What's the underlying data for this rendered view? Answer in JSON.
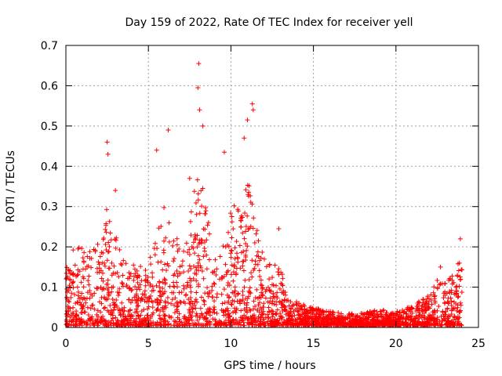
{
  "chart_data": {
    "type": "scatter",
    "title": "Day 159 of 2022, Rate Of TEC Index for receiver yell",
    "xlabel": "GPS time / hours",
    "ylabel": "ROTI / TECUs",
    "xlim": [
      0,
      25
    ],
    "ylim": [
      0,
      0.7
    ],
    "xticks": [
      0,
      5,
      10,
      15,
      20,
      25
    ],
    "xtick_labels": [
      "0",
      "5",
      "10",
      "15",
      "20",
      "25"
    ],
    "yticks": [
      0,
      0.1,
      0.2,
      0.3,
      0.4,
      0.5,
      0.6,
      0.7
    ],
    "ytick_labels": [
      "0",
      "0.1",
      "0.2",
      "0.3",
      "0.4",
      "0.5",
      "0.6",
      "0.7"
    ],
    "grid": true,
    "legend": "none",
    "marker": "+",
    "series": [
      {
        "name": "ROTI",
        "color": "#ff0000",
        "notable_points": [
          {
            "x": 2.5,
            "y": 0.46
          },
          {
            "x": 2.55,
            "y": 0.43
          },
          {
            "x": 3.0,
            "y": 0.34
          },
          {
            "x": 5.5,
            "y": 0.44
          },
          {
            "x": 6.2,
            "y": 0.49
          },
          {
            "x": 7.5,
            "y": 0.37
          },
          {
            "x": 8.05,
            "y": 0.655
          },
          {
            "x": 8.0,
            "y": 0.595
          },
          {
            "x": 8.1,
            "y": 0.54
          },
          {
            "x": 8.3,
            "y": 0.5
          },
          {
            "x": 9.6,
            "y": 0.435
          },
          {
            "x": 10.8,
            "y": 0.47
          },
          {
            "x": 11.0,
            "y": 0.515
          },
          {
            "x": 11.3,
            "y": 0.555
          },
          {
            "x": 11.35,
            "y": 0.54
          },
          {
            "x": 12.9,
            "y": 0.245
          },
          {
            "x": 22.7,
            "y": 0.15
          },
          {
            "x": 23.9,
            "y": 0.22
          }
        ],
        "envelope": [
          {
            "x": 0.0,
            "y": 0.16
          },
          {
            "x": 0.5,
            "y": 0.2
          },
          {
            "x": 1.0,
            "y": 0.2
          },
          {
            "x": 1.5,
            "y": 0.19
          },
          {
            "x": 2.0,
            "y": 0.21
          },
          {
            "x": 2.5,
            "y": 0.3
          },
          {
            "x": 3.0,
            "y": 0.23
          },
          {
            "x": 3.5,
            "y": 0.17
          },
          {
            "x": 4.0,
            "y": 0.16
          },
          {
            "x": 4.5,
            "y": 0.16
          },
          {
            "x": 5.0,
            "y": 0.15
          },
          {
            "x": 5.5,
            "y": 0.28
          },
          {
            "x": 6.0,
            "y": 0.3
          },
          {
            "x": 6.5,
            "y": 0.24
          },
          {
            "x": 7.0,
            "y": 0.2
          },
          {
            "x": 7.5,
            "y": 0.27
          },
          {
            "x": 8.0,
            "y": 0.42
          },
          {
            "x": 8.5,
            "y": 0.3
          },
          {
            "x": 9.0,
            "y": 0.18
          },
          {
            "x": 9.5,
            "y": 0.2
          },
          {
            "x": 10.0,
            "y": 0.3
          },
          {
            "x": 10.5,
            "y": 0.33
          },
          {
            "x": 11.0,
            "y": 0.38
          },
          {
            "x": 11.5,
            "y": 0.27
          },
          {
            "x": 12.0,
            "y": 0.17
          },
          {
            "x": 12.5,
            "y": 0.17
          },
          {
            "x": 13.0,
            "y": 0.16
          },
          {
            "x": 13.5,
            "y": 0.07
          },
          {
            "x": 14.0,
            "y": 0.065
          },
          {
            "x": 14.5,
            "y": 0.055
          },
          {
            "x": 15.0,
            "y": 0.05
          },
          {
            "x": 16.0,
            "y": 0.04
          },
          {
            "x": 17.0,
            "y": 0.035
          },
          {
            "x": 18.0,
            "y": 0.035
          },
          {
            "x": 19.0,
            "y": 0.045
          },
          {
            "x": 20.0,
            "y": 0.04
          },
          {
            "x": 21.0,
            "y": 0.055
          },
          {
            "x": 22.0,
            "y": 0.08
          },
          {
            "x": 22.5,
            "y": 0.12
          },
          {
            "x": 23.0,
            "y": 0.11
          },
          {
            "x": 23.5,
            "y": 0.14
          },
          {
            "x": 24.0,
            "y": 0.2
          }
        ],
        "floor": 0.005,
        "x_range": [
          0,
          24
        ]
      }
    ]
  },
  "colors": {
    "points": "#ff0000",
    "axes": "#000000",
    "grid": "#a0a0a0",
    "background": "#ffffff"
  }
}
